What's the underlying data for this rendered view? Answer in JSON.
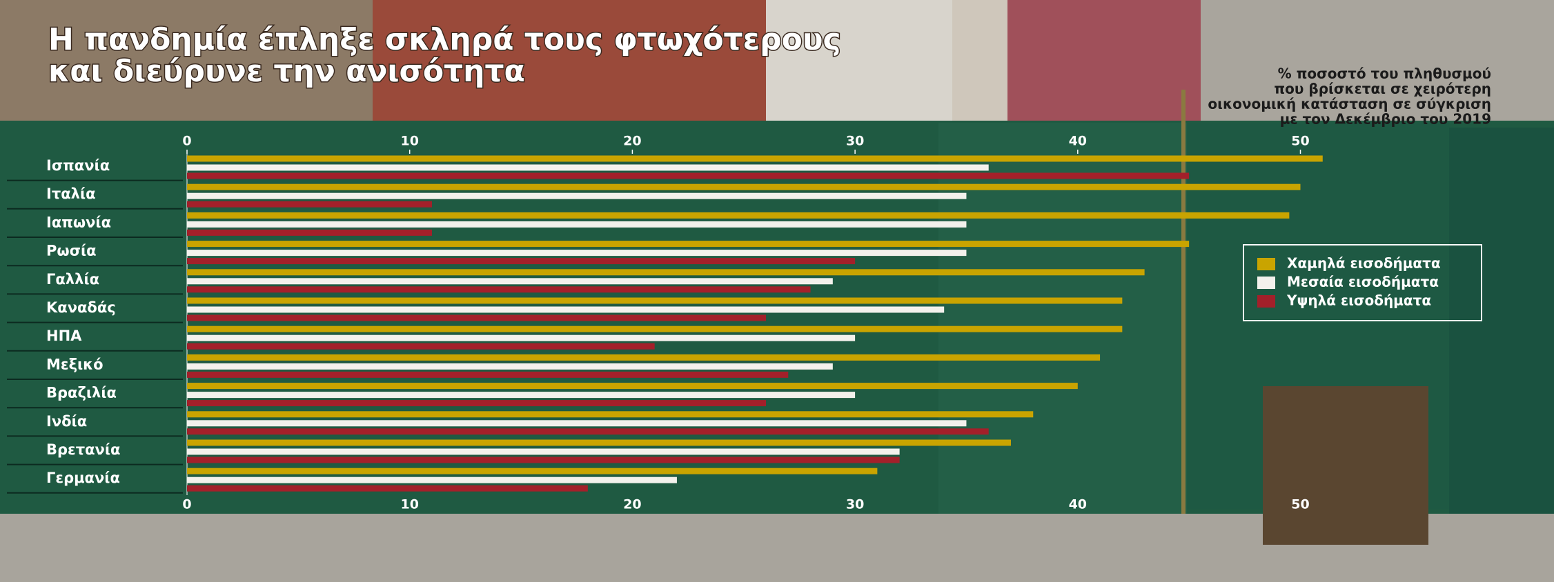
{
  "chart_data": {
    "type": "bar",
    "orientation": "horizontal",
    "title": [
      "Η πανδημία έπληξε σκληρά τους φτωχότερους",
      "και διεύρυνε την ανισότητα"
    ],
    "subtitle": [
      "% ποσοστό του πληθυσμού",
      "που βρίσκεται σε χειρότερη",
      "οικονομική κατάσταση σε σύγκριση",
      "με τον Δεκέμβριο του 2019"
    ],
    "categories": [
      "Ισπανία",
      "Ιταλία",
      "Ιαπωνία",
      "Ρωσία",
      "Γαλλία",
      "Καναδάς",
      "ΗΠΑ",
      "Μεξικό",
      "Βραζιλία",
      "Ινδία",
      "Βρετανία",
      "Γερμανία"
    ],
    "series": [
      {
        "name": "Χαμηλά εισοδήματα",
        "color": "#c9a400",
        "values": [
          51,
          50,
          49.5,
          45,
          43,
          42,
          42,
          41,
          40,
          38,
          37,
          31
        ]
      },
      {
        "name": "Μεσαία εισοδήματα",
        "color": "#f3f1ec",
        "values": [
          36,
          35,
          35,
          35,
          29,
          34,
          30,
          29,
          30,
          35,
          32,
          22
        ]
      },
      {
        "name": "Υψηλά εισοδήματα",
        "color": "#a3202a",
        "values": [
          45,
          11,
          11,
          30,
          28,
          26,
          21,
          27,
          26,
          36,
          32,
          18
        ]
      }
    ],
    "xlim": [
      0,
      55
    ],
    "xticks": [
      0,
      10,
      20,
      30,
      40,
      50
    ],
    "legend": "right"
  }
}
